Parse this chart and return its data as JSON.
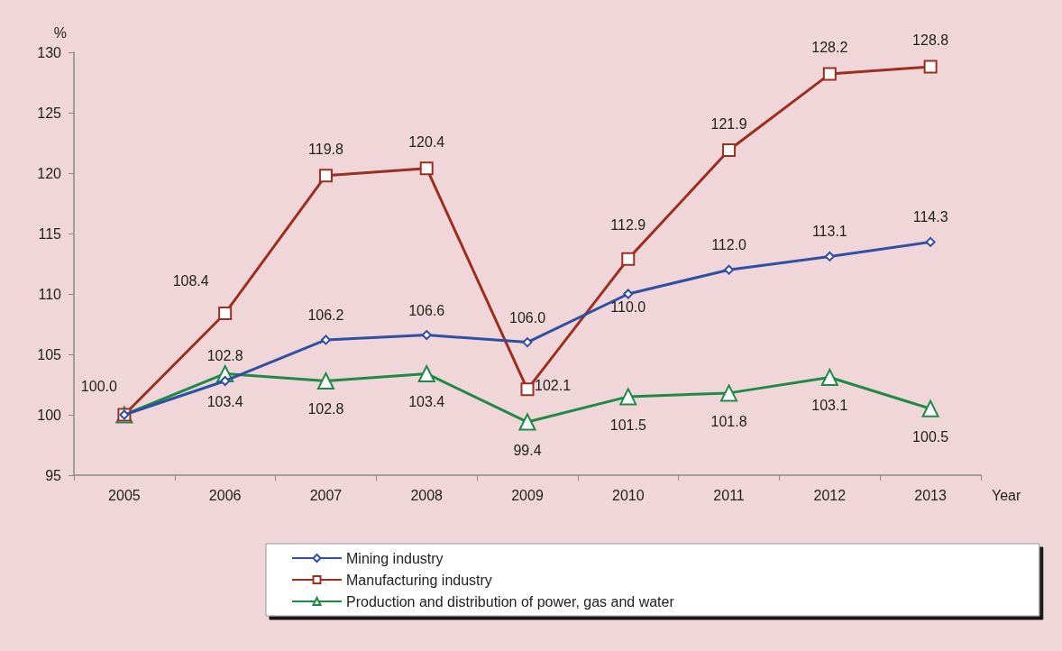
{
  "chart_data": {
    "type": "line",
    "xlabel": "Year",
    "ylabel": "%",
    "categories": [
      "2005",
      "2006",
      "2007",
      "2008",
      "2009",
      "2010",
      "2011",
      "2012",
      "2013"
    ],
    "series": [
      {
        "name": "Mining industry",
        "color": "#2e4fa3",
        "marker": "diamond",
        "values": [
          100.0,
          102.8,
          106.2,
          106.6,
          106.0,
          110.0,
          112.0,
          113.1,
          114.3
        ],
        "value_labels": [
          "100.0",
          "102.8",
          "106.2",
          "106.6",
          "106.0",
          "110.0",
          "112.0",
          "113.1",
          "114.3"
        ]
      },
      {
        "name": "Manufacturing industry",
        "color": "#9b2f20",
        "marker": "square",
        "values": [
          100.0,
          108.4,
          119.8,
          120.4,
          102.1,
          112.9,
          121.9,
          128.2,
          128.8
        ],
        "value_labels": [
          null,
          "108.4",
          "119.8",
          "120.4",
          "102.1",
          "112.9",
          "121.9",
          "128.2",
          "128.8"
        ]
      },
      {
        "name": "Production and distribution of power, gas and water",
        "color": "#1e8a46",
        "marker": "triangle",
        "values": [
          100.0,
          103.4,
          102.8,
          103.4,
          99.4,
          101.5,
          101.8,
          103.1,
          100.5
        ],
        "value_labels": [
          null,
          "103.4",
          "102.8",
          "103.4",
          "99.4",
          "101.5",
          "101.8",
          "103.1",
          "100.5"
        ]
      }
    ],
    "ylim": [
      95,
      130
    ],
    "yticks": [
      95,
      100,
      105,
      110,
      115,
      120,
      125,
      130
    ],
    "grid": false,
    "legend": "bottom"
  }
}
